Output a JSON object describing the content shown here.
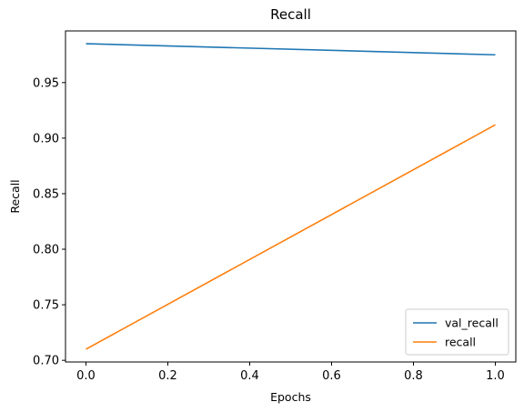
{
  "chart_data": {
    "type": "line",
    "title": "Recall",
    "xlabel": "Epochs",
    "ylabel": "Recall",
    "xlim": [
      -0.05,
      1.05
    ],
    "ylim": [
      0.6985,
      0.9965
    ],
    "xticks": [
      0.0,
      0.2,
      0.4,
      0.6,
      0.8,
      1.0
    ],
    "xtick_labels": [
      "0.0",
      "0.2",
      "0.4",
      "0.6",
      "0.8",
      "1.0"
    ],
    "yticks": [
      0.7,
      0.75,
      0.8,
      0.85,
      0.9,
      0.95
    ],
    "ytick_labels": [
      "0.70",
      "0.75",
      "0.80",
      "0.85",
      "0.90",
      "0.95"
    ],
    "grid": false,
    "legend_position": "bottom-right",
    "series": [
      {
        "name": "val_recall",
        "color": "#1f77b4",
        "x": [
          0,
          1
        ],
        "y": [
          0.985,
          0.975
        ]
      },
      {
        "name": "recall",
        "color": "#ff7f0e",
        "x": [
          0,
          1
        ],
        "y": [
          0.71,
          0.912
        ]
      }
    ]
  }
}
